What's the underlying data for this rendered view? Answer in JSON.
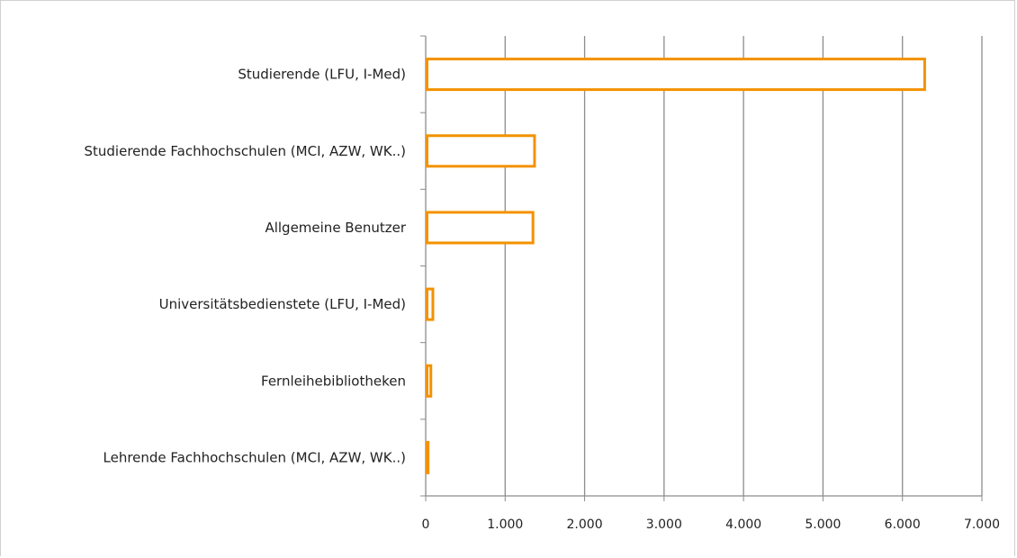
{
  "chart_data": {
    "type": "bar",
    "orientation": "horizontal",
    "categories": [
      "Studierende (LFU, I-Med)",
      "Studierende Fachhochschulen (MCI, AZW, WK..)",
      "Allgemeine Benutzer",
      "Universitätsbedienstete (LFU, I-Med)",
      "Fernleihebibliotheken",
      "Lehrende Fachhochschulen (MCI, AZW, WK..)"
    ],
    "values": [
      6280,
      1370,
      1350,
      90,
      65,
      30
    ],
    "xlim": [
      0,
      7000
    ],
    "xticks": [
      0,
      1000,
      2000,
      3000,
      4000,
      5000,
      6000,
      7000
    ],
    "xtick_labels": [
      "0",
      "1.000",
      "2.000",
      "3.000",
      "4.000",
      "5.000",
      "6.000",
      "7.000"
    ],
    "title": "",
    "xlabel": "",
    "ylabel": "",
    "grid": "vertical",
    "legend": "none",
    "bar_style": "outline",
    "colors": {
      "bar_stroke": "#f39200",
      "bar_fill": "#ffffff",
      "grid": "#8c8c8c",
      "axis": "#8c8c8c"
    }
  }
}
